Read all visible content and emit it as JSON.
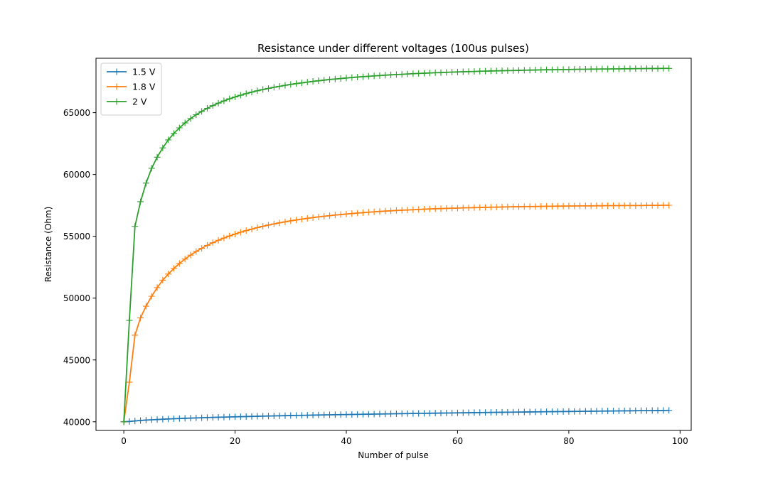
{
  "chart_data": {
    "type": "line",
    "title": "Resistance under different voltages (100us pulses)",
    "xlabel": "Number of pulse",
    "ylabel": "Resistance (Ohm)",
    "xlim": [
      -5,
      102
    ],
    "ylim": [
      39300,
      69400
    ],
    "xticks": [
      0,
      20,
      40,
      60,
      80,
      100
    ],
    "xtick_labels": [
      "0",
      "20",
      "40",
      "60",
      "80",
      "100"
    ],
    "yticks": [
      40000,
      45000,
      50000,
      55000,
      60000,
      65000
    ],
    "ytick_labels": [
      "40000",
      "45000",
      "50000",
      "55000",
      "60000",
      "65000"
    ],
    "grid": false,
    "legend_position": "top-left",
    "marker": "plus",
    "x": [
      0,
      1,
      2,
      3,
      4,
      5,
      6,
      7,
      8,
      9,
      10,
      11,
      12,
      13,
      14,
      15,
      16,
      17,
      18,
      19,
      20,
      21,
      22,
      23,
      24,
      25,
      26,
      27,
      28,
      29,
      30,
      31,
      32,
      33,
      34,
      35,
      36,
      37,
      38,
      39,
      40,
      41,
      42,
      43,
      44,
      45,
      46,
      47,
      48,
      49,
      50,
      51,
      52,
      53,
      54,
      55,
      56,
      57,
      58,
      59,
      60,
      61,
      62,
      63,
      64,
      65,
      66,
      67,
      68,
      69,
      70,
      71,
      72,
      73,
      74,
      75,
      76,
      77,
      78,
      79,
      80,
      81,
      82,
      83,
      84,
      85,
      86,
      87,
      88,
      89,
      90,
      91,
      92,
      93,
      94,
      95,
      96,
      97,
      98
    ],
    "series": [
      {
        "name": "1.5 V",
        "color": "#1f77b4",
        "values": [
          40000,
          40027,
          40070,
          40106,
          40135,
          40161,
          40185,
          40207,
          40227,
          40246,
          40264,
          40281,
          40297,
          40312,
          40326,
          40340,
          40354,
          40366,
          40379,
          40391,
          40403,
          40414,
          40425,
          40436,
          40446,
          40456,
          40466,
          40476,
          40485,
          40494,
          40503,
          40512,
          40521,
          40530,
          40538,
          40546,
          40555,
          40563,
          40571,
          40578,
          40586,
          40594,
          40601,
          40609,
          40616,
          40623,
          40630,
          40637,
          40644,
          40651,
          40658,
          40664,
          40671,
          40678,
          40684,
          40690,
          40697,
          40703,
          40709,
          40715,
          40722,
          40728,
          40734,
          40740,
          40745,
          40751,
          40757,
          40763,
          40769,
          40774,
          40780,
          40786,
          40791,
          40797,
          40802,
          40807,
          40813,
          40818,
          40823,
          40829,
          40834,
          40839,
          40844,
          40849,
          40854,
          40859,
          40864,
          40869,
          40874,
          40879,
          40884,
          40889,
          40894,
          40899,
          40903,
          40908,
          40913,
          40917,
          40922
        ]
      },
      {
        "name": "1.8 V",
        "color": "#ff7f0e",
        "values": [
          40000,
          43200,
          47000,
          48400,
          49350,
          50150,
          50850,
          51450,
          51950,
          52400,
          52800,
          53160,
          53480,
          53770,
          54030,
          54270,
          54480,
          54680,
          54860,
          55030,
          55180,
          55330,
          55460,
          55580,
          55700,
          55810,
          55910,
          56000,
          56090,
          56170,
          56250,
          56320,
          56390,
          56450,
          56510,
          56570,
          56620,
          56670,
          56720,
          56760,
          56800,
          56840,
          56880,
          56910,
          56950,
          56980,
          57010,
          57040,
          57060,
          57090,
          57110,
          57130,
          57150,
          57170,
          57190,
          57210,
          57230,
          57240,
          57260,
          57270,
          57280,
          57300,
          57310,
          57320,
          57330,
          57340,
          57350,
          57360,
          57370,
          57380,
          57390,
          57390,
          57400,
          57410,
          57410,
          57420,
          57430,
          57430,
          57440,
          57440,
          57450,
          57450,
          57460,
          57460,
          57460,
          57470,
          57470,
          57480,
          57480,
          57480,
          57490,
          57490,
          57490,
          57490,
          57500,
          57500,
          57500,
          57510,
          57510
        ]
      },
      {
        "name": "2 V",
        "color": "#2ca02c",
        "values": [
          40000,
          48200,
          55800,
          57800,
          59300,
          60500,
          61400,
          62150,
          62800,
          63320,
          63770,
          64170,
          64520,
          64830,
          65100,
          65350,
          65570,
          65770,
          65950,
          66120,
          66270,
          66410,
          66540,
          66660,
          66770,
          66870,
          66960,
          67050,
          67130,
          67210,
          67280,
          67350,
          67410,
          67470,
          67530,
          67580,
          67630,
          67680,
          67720,
          67760,
          67800,
          67840,
          67880,
          67910,
          67940,
          67970,
          68000,
          68030,
          68060,
          68080,
          68100,
          68130,
          68150,
          68170,
          68190,
          68210,
          68230,
          68240,
          68260,
          68280,
          68290,
          68310,
          68320,
          68330,
          68350,
          68360,
          68370,
          68380,
          68390,
          68400,
          68410,
          68420,
          68430,
          68440,
          68450,
          68460,
          68470,
          68470,
          68480,
          68490,
          68490,
          68500,
          68510,
          68510,
          68520,
          68520,
          68530,
          68530,
          68540,
          68540,
          68550,
          68550,
          68560,
          68560,
          68570,
          68570,
          68570,
          68580,
          68580
        ]
      }
    ]
  }
}
